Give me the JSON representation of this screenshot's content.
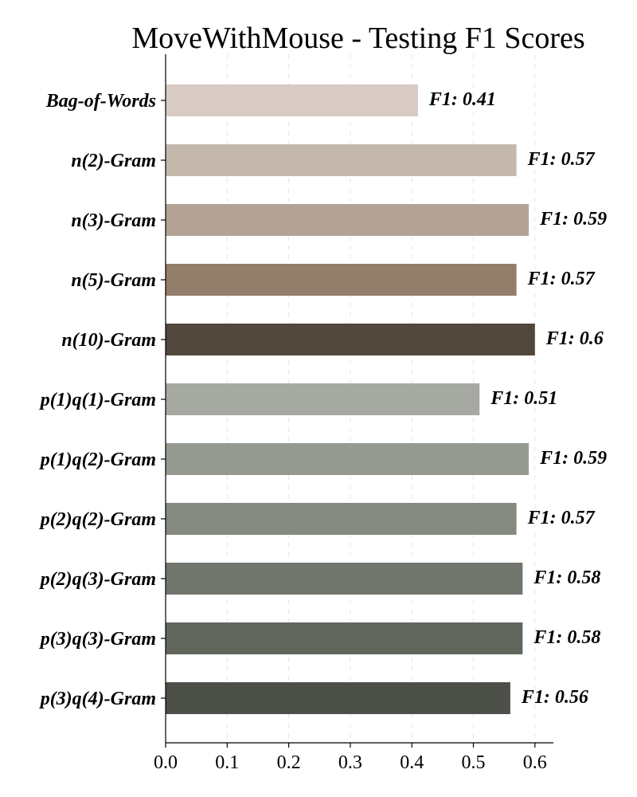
{
  "chart_data": {
    "type": "bar",
    "orientation": "horizontal",
    "title": "MoveWithMouse - Testing F1 Scores",
    "xlabel": "",
    "ylabel": "",
    "xlim": [
      0,
      0.63
    ],
    "xticks": [
      "0.0",
      "0.1",
      "0.2",
      "0.3",
      "0.4",
      "0.5",
      "0.6"
    ],
    "xtick_values": [
      0.0,
      0.1,
      0.2,
      0.3,
      0.4,
      0.5,
      0.6
    ],
    "grid": "vertical dashed",
    "value_label_prefix": "F1: ",
    "categories": [
      "Bag-of-Words",
      "n(2)-Gram",
      "n(3)-Gram",
      "n(5)-Gram",
      "n(10)-Gram",
      "p(1)q(1)-Gram",
      "p(1)q(2)-Gram",
      "p(2)q(2)-Gram",
      "p(2)q(3)-Gram",
      "p(3)q(3)-Gram",
      "p(3)q(4)-Gram"
    ],
    "values": [
      0.41,
      0.57,
      0.59,
      0.57,
      0.6,
      0.51,
      0.59,
      0.57,
      0.58,
      0.58,
      0.56
    ],
    "value_labels": [
      "F1: 0.41",
      "F1: 0.57",
      "F1: 0.59",
      "F1: 0.57",
      "F1: 0.6",
      "F1: 0.51",
      "F1: 0.59",
      "F1: 0.57",
      "F1: 0.58",
      "F1: 0.58",
      "F1: 0.56"
    ],
    "colors": [
      "#d8cbc3",
      "#c4b8ad",
      "#b2a395",
      "#937d6b",
      "#51473d",
      "#a6a9a2",
      "#959a90",
      "#858a80",
      "#71766d",
      "#61665d",
      "#4d5049"
    ]
  }
}
